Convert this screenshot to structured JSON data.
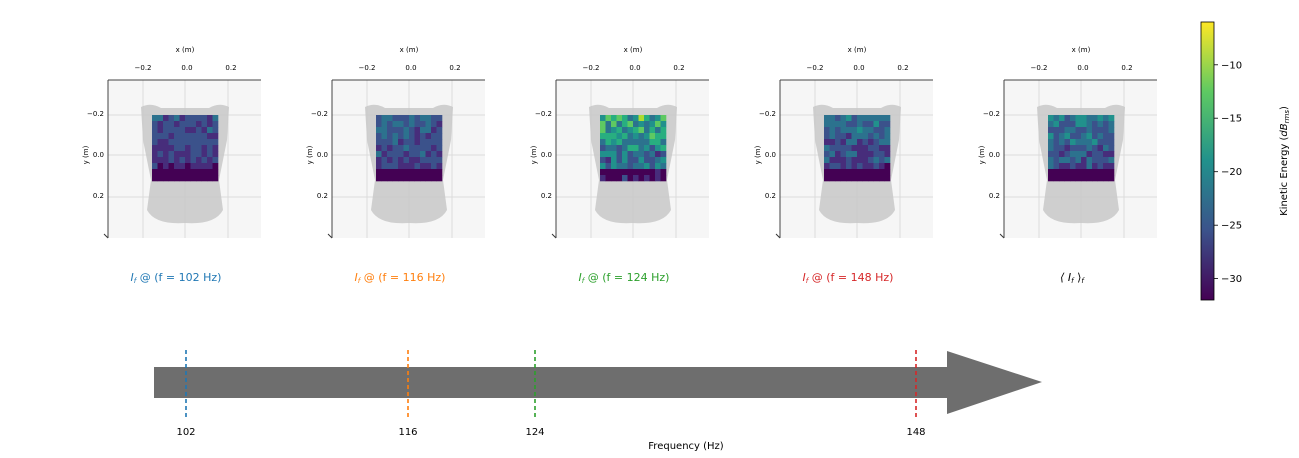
{
  "chart_data": {
    "type": "heatmap",
    "panels": [
      {
        "label": "I_f @ (f = 102 Hz)",
        "label_prefix": "I",
        "label_sub": "f",
        "label_rest": " @ (f = 102 Hz)",
        "color": "#1f77b4",
        "frequency": 102,
        "intensity": 0.35
      },
      {
        "label": "I_f @ (f = 116 Hz)",
        "label_prefix": "I",
        "label_sub": "f",
        "label_rest": " @ (f = 116 Hz)",
        "color": "#ff7f0e",
        "frequency": 116,
        "intensity": 0.45
      },
      {
        "label": "I_f @ (f = 124 Hz)",
        "label_prefix": "I",
        "label_sub": "f",
        "label_rest": " @ (f = 124 Hz)",
        "color": "#2ca02c",
        "frequency": 124,
        "intensity": 0.85
      },
      {
        "label": "I_f @ (f = 148 Hz)",
        "label_prefix": "I",
        "label_sub": "f",
        "label_rest": " @ (f = 148 Hz)",
        "color": "#d62728",
        "frequency": 148,
        "intensity": 0.5
      },
      {
        "label": "⟨ I_f ⟩_f",
        "label_prefix": "⟨ I",
        "label_sub": "f",
        "label_rest": " ⟩",
        "label_sub2": "f",
        "color": "#000000",
        "frequency": null,
        "intensity": 0.55
      }
    ],
    "panel_axes": {
      "xlabel": "x (m)",
      "ylabel": "y (m)",
      "x_ticks": [
        "−0.2",
        "0.0",
        "0.2"
      ],
      "y_ticks": [
        "−0.2",
        "0.0",
        "0.2"
      ],
      "x_tick_values": [
        -0.2,
        0.0,
        0.2
      ],
      "y_tick_values": [
        -0.2,
        0.0,
        0.2
      ]
    },
    "colorbar": {
      "label_main": "Kinetic Energy (",
      "label_math": "dB",
      "label_sub": "rms",
      "label_end": ")",
      "ticks": [
        "−10",
        "−15",
        "−20",
        "−25",
        "−30"
      ],
      "tick_values": [
        -10,
        -15,
        -20,
        -25,
        -30
      ],
      "range": [
        -32,
        -6
      ],
      "colormap": "viridis"
    },
    "frequency_axis": {
      "xlabel": "Frequency (Hz)",
      "range": [
        95,
        160
      ],
      "markers": [
        {
          "value": 102,
          "label": "102",
          "color": "#1f77b4"
        },
        {
          "value": 116,
          "label": "116",
          "color": "#ff7f0e"
        },
        {
          "value": 124,
          "label": "124",
          "color": "#2ca02c"
        },
        {
          "value": 148,
          "label": "148",
          "color": "#d62728"
        }
      ]
    }
  }
}
